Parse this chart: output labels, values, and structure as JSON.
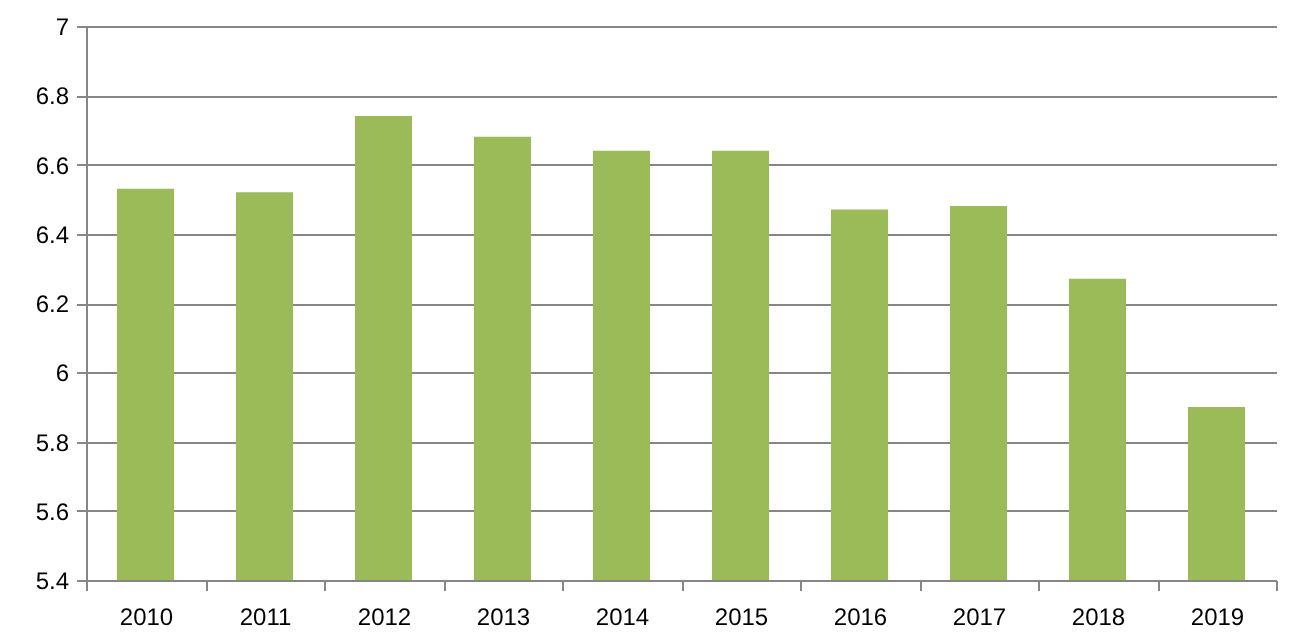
{
  "chart_data": {
    "type": "bar",
    "categories": [
      "2010",
      "2011",
      "2012",
      "2013",
      "2014",
      "2015",
      "2016",
      "2017",
      "2018",
      "2019"
    ],
    "values": [
      6.53,
      6.52,
      6.74,
      6.68,
      6.64,
      6.64,
      6.47,
      6.48,
      6.27,
      5.9
    ],
    "color": "#9bbb59",
    "ylim": [
      5.4,
      7
    ],
    "yticks": [
      5.4,
      5.6,
      5.8,
      6,
      6.2,
      6.4,
      6.6,
      6.8,
      7
    ],
    "grid": "y"
  }
}
